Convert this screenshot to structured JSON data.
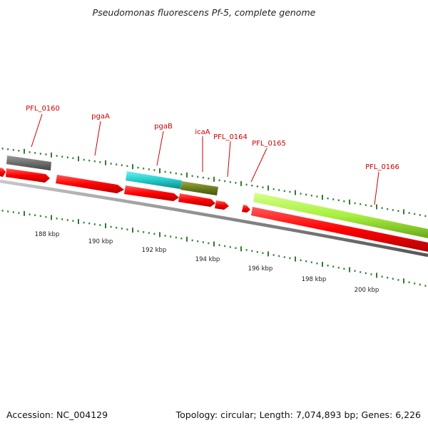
{
  "title": "Pseudomonas fluorescens Pf-5, complete genome",
  "accession": "Accession: NC_004129",
  "summary": "Topology: circular; Length: 7,074,893 bp; Genes: 6,226",
  "colors": {
    "cds": "#ff0000",
    "backbone": "#888888",
    "label": "#cc0000",
    "dots": "#2e7d32",
    "ticks": "#2e7d32"
  },
  "gene_labels": [
    "PFL_0160",
    "pgaA",
    "pgaB",
    "icaA",
    "PFL_0164",
    "PFL_0165",
    "PFL_0166"
  ],
  "scale_labels": [
    "188 kbp",
    "190 kbp",
    "192 kbp",
    "194 kbp",
    "196 kbp",
    "198 kbp",
    "200 kbp"
  ]
}
